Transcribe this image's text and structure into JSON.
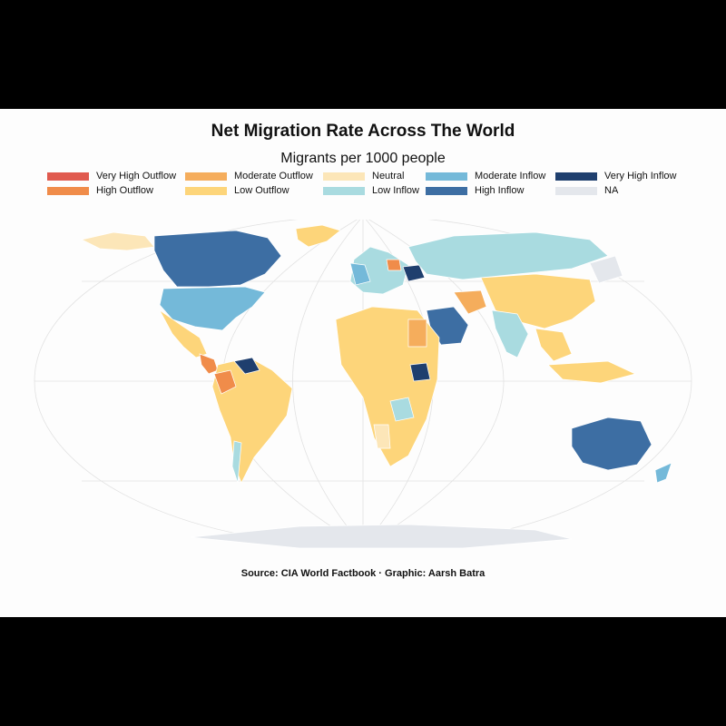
{
  "title": "Net Migration Rate Across The World",
  "subtitle": "Migrants per 1000 people",
  "caption": "Source: CIA World Factbook · Graphic: Aarsh Batra",
  "legend": [
    {
      "label": "Very High Outflow",
      "color": "#e05a4f"
    },
    {
      "label": "High Outflow",
      "color": "#f08c4a"
    },
    {
      "label": "Moderate Outflow",
      "color": "#f5ad5c"
    },
    {
      "label": "Low Outflow",
      "color": "#fdd57a"
    },
    {
      "label": "Neutral",
      "color": "#fce6b8"
    },
    {
      "label": "Low Inflow",
      "color": "#a9dbe0"
    },
    {
      "label": "Moderate Inflow",
      "color": "#74b9d9"
    },
    {
      "label": "High Inflow",
      "color": "#3d6ea3"
    },
    {
      "label": "Very High Inflow",
      "color": "#1f3f6e"
    },
    {
      "label": "NA",
      "color": "#e4e7ec"
    }
  ],
  "colors": {
    "graticule": "#e2e2e2",
    "ocean": "#fdfdfd",
    "border": "#ffffff"
  }
}
